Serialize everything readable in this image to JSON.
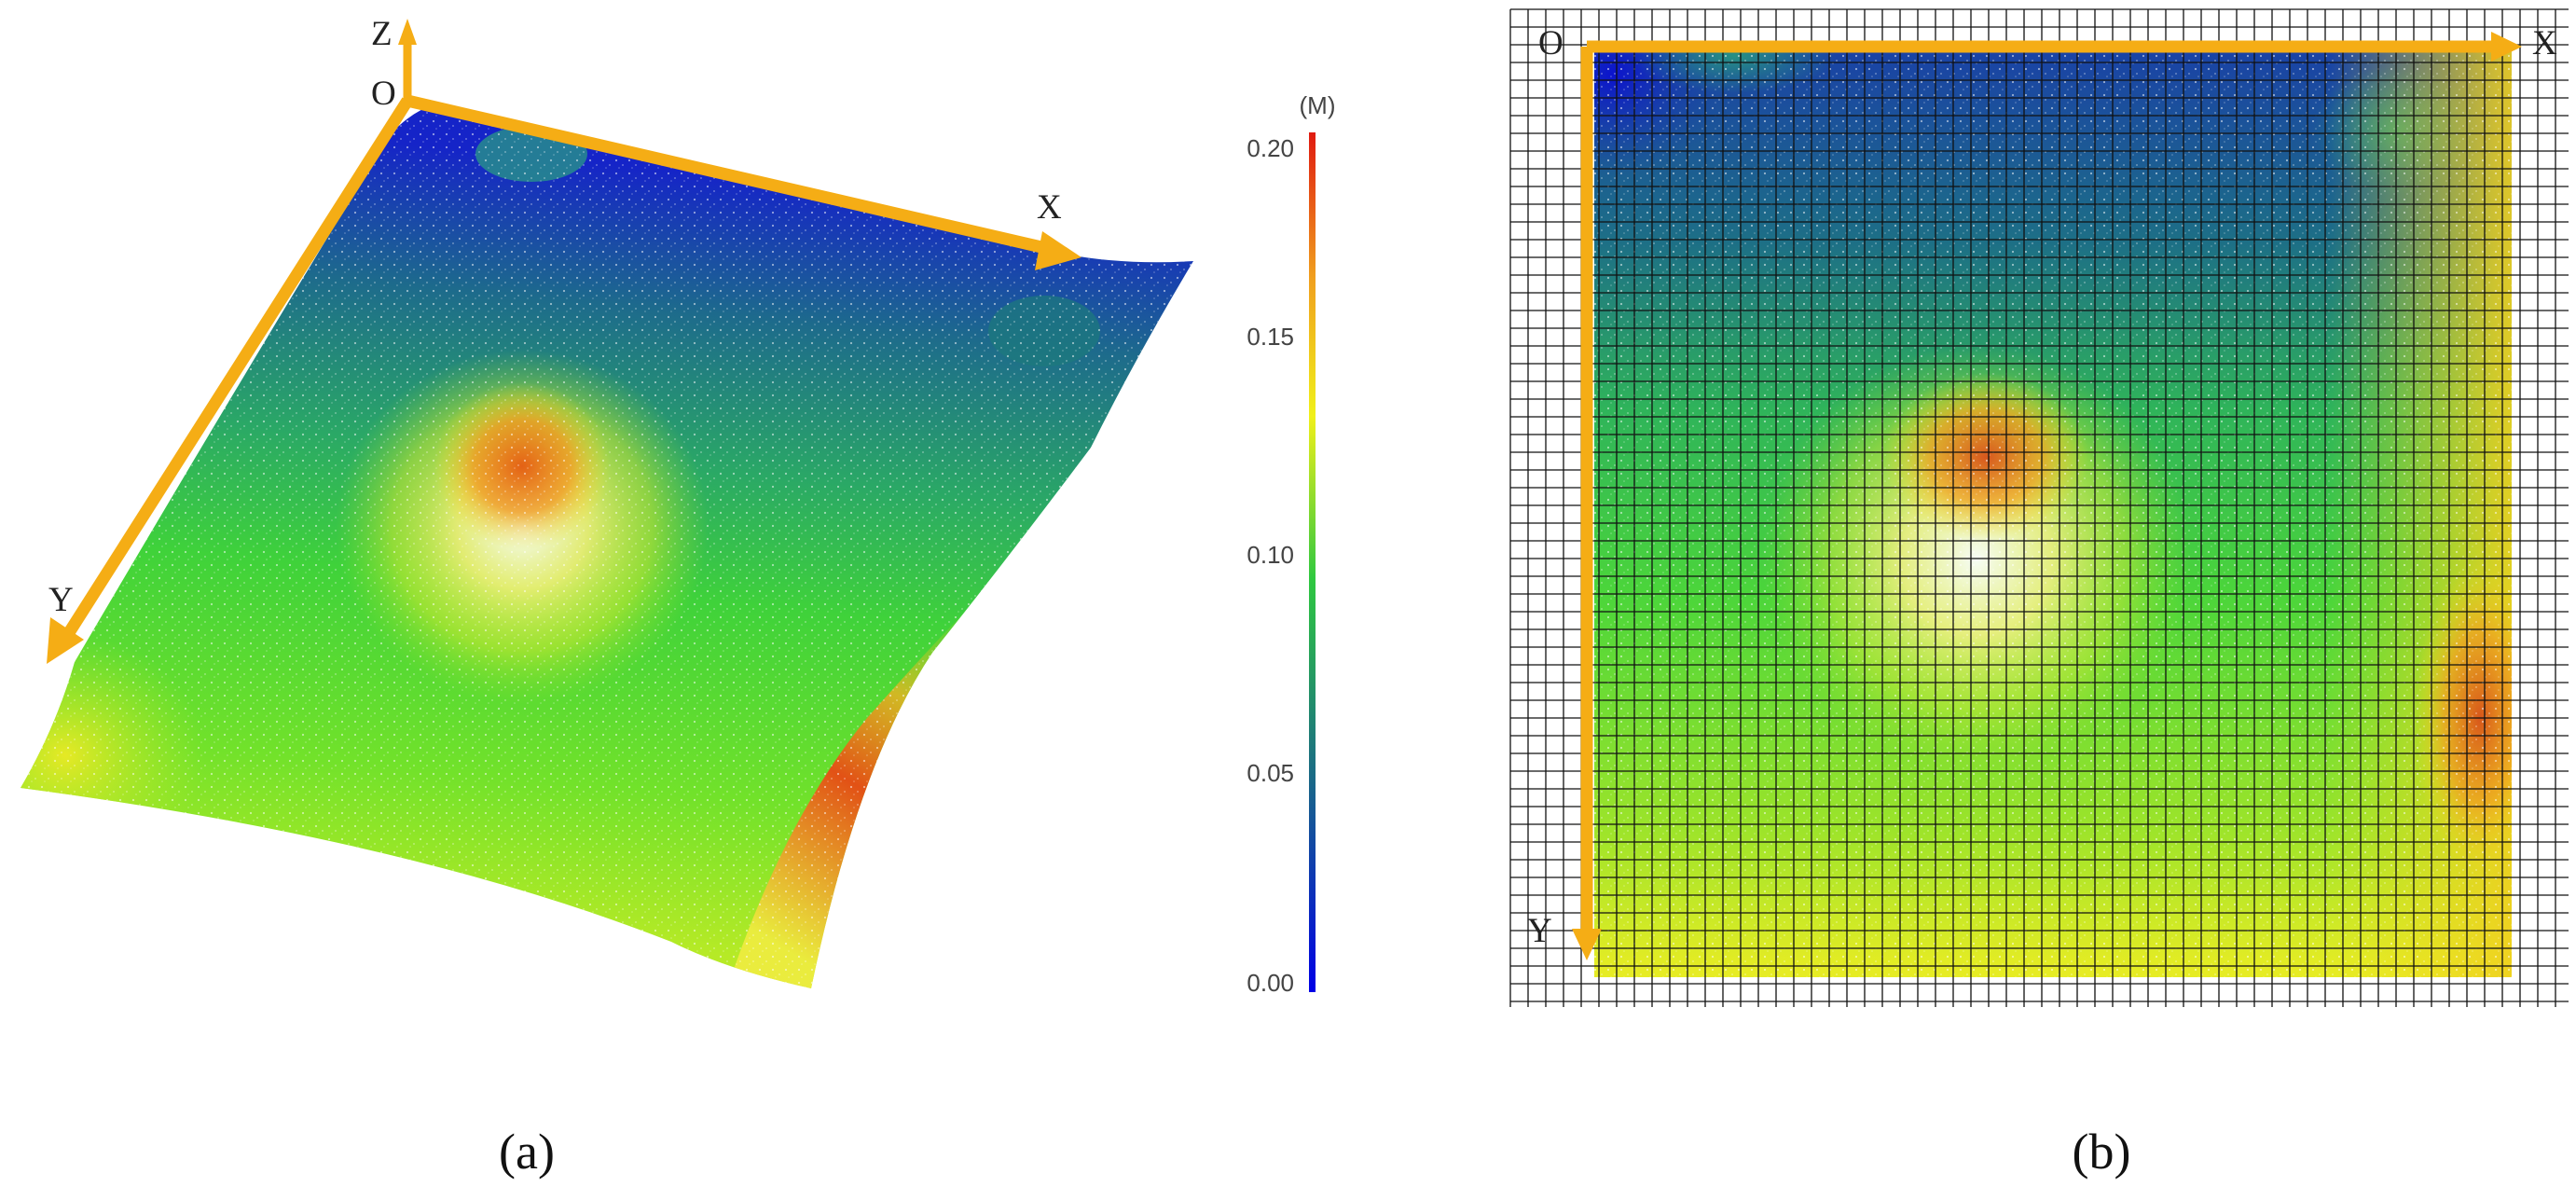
{
  "panel_a": {
    "caption": "(a)",
    "axes": {
      "origin": "O",
      "x": "X",
      "y": "Y",
      "z": "Z"
    }
  },
  "colorbar": {
    "unit": "(M)",
    "ticks": [
      "0.20",
      "0.15",
      "0.10",
      "0.05",
      "0.00"
    ],
    "tick_values": [
      0.2,
      0.15,
      0.1,
      0.05,
      0.0
    ],
    "range": [
      0.0,
      0.2
    ],
    "colors": [
      "#0000e6",
      "#1a6a86",
      "#2fc840",
      "#66e61e",
      "#f0f01a",
      "#f0a01e",
      "#e01a10"
    ]
  },
  "panel_b": {
    "caption": "(b)",
    "axes": {
      "origin": "O",
      "x": "X",
      "y": "Y"
    },
    "grid": true
  },
  "colors": {
    "axis_arrow": "#f5ad15",
    "grid_line": "#111111"
  }
}
